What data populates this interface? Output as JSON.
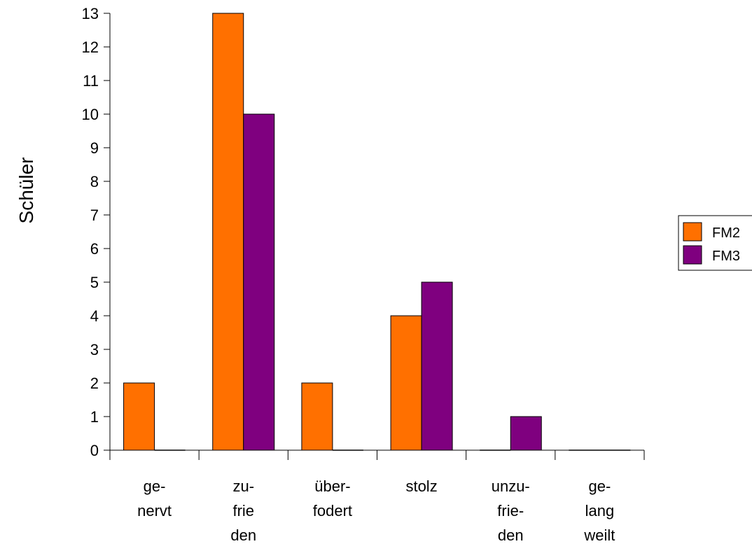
{
  "chart_data": {
    "type": "bar",
    "title": "",
    "ylabel": "Schüler",
    "xlabel": "",
    "ylim": [
      0,
      13
    ],
    "yticks": [
      "0",
      "1",
      "2",
      "3",
      "4",
      "5",
      "6",
      "7",
      "8",
      "9",
      "10",
      "11",
      "12",
      "13"
    ],
    "categories": [
      [
        "ge-",
        "nervt"
      ],
      [
        "zu-",
        "frie",
        "den"
      ],
      [
        "über-",
        "fodert"
      ],
      [
        "stolz"
      ],
      [
        "unzu-",
        "frie-",
        "den"
      ],
      [
        "ge-",
        "lang",
        "weilt"
      ]
    ],
    "series": [
      {
        "name": "FM2",
        "color": "#FF7000",
        "values": [
          2,
          13,
          2,
          4,
          0,
          0
        ]
      },
      {
        "name": "FM3",
        "color": "#7F007F",
        "values": [
          0,
          10,
          0,
          5,
          1,
          0
        ]
      }
    ],
    "legend_position": "right",
    "grid": false
  }
}
